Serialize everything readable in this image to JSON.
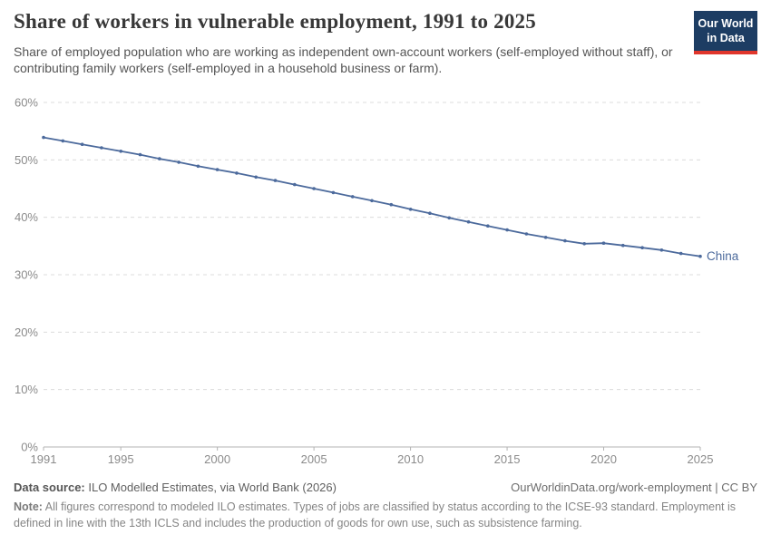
{
  "header": {
    "title": "Share of workers in vulnerable employment, 1991 to 2025",
    "subtitle": "Share of employed population who are working as independent own-account workers (self-employed without staff), or contributing family workers (self-employed in a household business or farm)."
  },
  "logo": {
    "line1": "Our World",
    "line2": "in Data"
  },
  "colors": {
    "line": "#4C6A9C",
    "entity_label": "#4C6A9C",
    "grid": "#DCDCDC",
    "axis": "#B3B3B3",
    "tick_label": "#8B8B8B",
    "logo_bg": "#1D3D63",
    "logo_red": "#E0362C"
  },
  "chart_data": {
    "type": "line",
    "title": "Share of workers in vulnerable employment, 1991 to 2025",
    "xlabel": "",
    "ylabel": "",
    "xlim": [
      1991,
      2025
    ],
    "ylim": [
      0,
      60
    ],
    "yticks": [
      0,
      10,
      20,
      30,
      40,
      50,
      60
    ],
    "ytick_suffix": "%",
    "xticks": [
      1991,
      1995,
      2000,
      2005,
      2010,
      2015,
      2020,
      2025
    ],
    "grid": "horizontal-dashed",
    "legend_position": "end-of-line-label",
    "x": [
      1991,
      1992,
      1993,
      1994,
      1995,
      1996,
      1997,
      1998,
      1999,
      2000,
      2001,
      2002,
      2003,
      2004,
      2005,
      2006,
      2007,
      2008,
      2009,
      2010,
      2011,
      2012,
      2013,
      2014,
      2015,
      2016,
      2017,
      2018,
      2019,
      2020,
      2021,
      2022,
      2023,
      2024,
      2025
    ],
    "series": [
      {
        "name": "China",
        "values": [
          53.9,
          53.3,
          52.7,
          52.1,
          51.5,
          50.9,
          50.2,
          49.6,
          48.9,
          48.3,
          47.7,
          47.0,
          46.4,
          45.7,
          45.0,
          44.3,
          43.6,
          42.9,
          42.2,
          41.4,
          40.7,
          39.9,
          39.2,
          38.5,
          37.8,
          37.1,
          36.5,
          35.9,
          35.4,
          35.5,
          35.1,
          34.7,
          34.3,
          33.7,
          33.2
        ]
      }
    ]
  },
  "footer": {
    "datasource_label": "Data source:",
    "datasource_text": " ILO Modelled Estimates, via World Bank (2026)",
    "attribution": "OurWorldinData.org/work-employment | CC BY",
    "note_label": "Note:",
    "note_text": " All figures correspond to modeled ILO estimates. Types of jobs are classified by status according to the ICSE-93 standard. Employment is defined in line with the 13th ICLS and includes the production of goods for own use, such as subsistence farming."
  }
}
